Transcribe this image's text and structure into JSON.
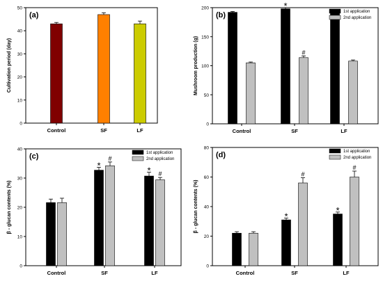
{
  "figure": {
    "colors": {
      "first_application": "#000000",
      "second_application": "#c0c0c0",
      "axis": "#000000"
    }
  },
  "chart_data": [
    {
      "panel_label": "(a)",
      "type": "bar",
      "categories": [
        "Control",
        "SF",
        "LF"
      ],
      "values": [
        43,
        47,
        43
      ],
      "errors": [
        0.6,
        0.8,
        1.2
      ],
      "colors": [
        "#800000",
        "#ff8000",
        "#cccc00"
      ],
      "ylabel": "Cultivation period (day)",
      "ylim": [
        0,
        50
      ],
      "yticks": [
        0,
        10,
        20,
        30,
        40,
        50
      ],
      "grid": false,
      "legend_position": "none"
    },
    {
      "panel_label": "(b)",
      "type": "bar",
      "categories": [
        "Control",
        "SF",
        "LF"
      ],
      "series": [
        {
          "name": "1st application",
          "values": [
            192,
            198,
            191
          ],
          "errors": [
            1.5,
            2,
            1.5
          ],
          "marks": [
            "",
            "*",
            ""
          ]
        },
        {
          "name": "2nd application",
          "values": [
            105,
            114,
            108
          ],
          "errors": [
            1.5,
            3,
            2
          ],
          "marks": [
            "",
            "#",
            ""
          ]
        }
      ],
      "ylabel": "Mushroom production (g)",
      "ylim": [
        0,
        200
      ],
      "yticks": [
        0,
        50,
        100,
        150,
        200
      ],
      "grid": false,
      "legend_position": "top-right"
    },
    {
      "panel_label": "(c)",
      "type": "bar",
      "categories": [
        "Control",
        "SF",
        "LF"
      ],
      "series": [
        {
          "name": "1st application",
          "values": [
            21.6,
            32.7,
            30.7
          ],
          "errors": [
            1.2,
            1,
            1.3
          ],
          "marks": [
            "",
            "*",
            "*"
          ]
        },
        {
          "name": "2nd application",
          "values": [
            21.6,
            34.2,
            29.4
          ],
          "errors": [
            1.5,
            1.3,
            0.8
          ],
          "marks": [
            "",
            "#",
            "#"
          ]
        }
      ],
      "ylabel": "β - glucan contents (%)",
      "ylim": [
        0,
        40
      ],
      "yticks": [
        0,
        10,
        20,
        30,
        40
      ],
      "grid": false,
      "legend_position": "top-right"
    },
    {
      "panel_label": "(d)",
      "type": "bar",
      "categories": [
        "Control",
        "SF",
        "LF"
      ],
      "series": [
        {
          "name": "1st application",
          "values": [
            22,
            31,
            35
          ],
          "errors": [
            1,
            1.2,
            1.3
          ],
          "marks": [
            "",
            "*",
            "*"
          ]
        },
        {
          "name": "2nd application",
          "values": [
            22,
            56,
            60
          ],
          "errors": [
            1,
            3.5,
            4
          ],
          "marks": [
            "",
            "#",
            "#"
          ]
        }
      ],
      "ylabel": "β - glucan contents (%)",
      "ylim": [
        0,
        80
      ],
      "yticks": [
        0,
        20,
        40,
        60,
        80
      ],
      "grid": false,
      "legend_position": "top-right"
    }
  ]
}
